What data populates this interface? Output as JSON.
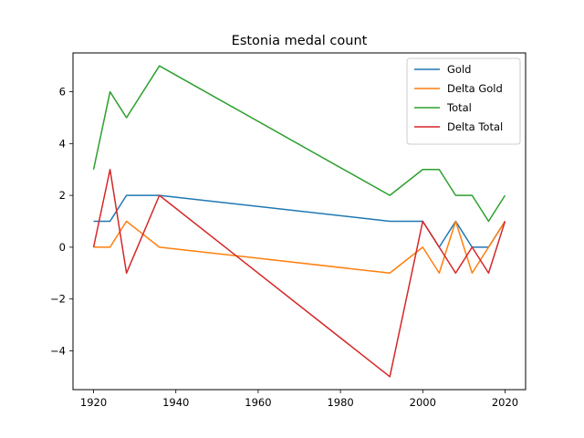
{
  "chart_data": {
    "type": "line",
    "title": "Estonia medal count",
    "xlabel": "",
    "ylabel": "",
    "xlim": [
      1915,
      2025
    ],
    "ylim": [
      -5.5,
      7.5
    ],
    "x": [
      1920,
      1924,
      1928,
      1936,
      1992,
      2000,
      2004,
      2008,
      2012,
      2016,
      2020
    ],
    "xticks": [
      1920,
      1940,
      1960,
      1980,
      2000,
      2020
    ],
    "yticks": [
      -4,
      -2,
      0,
      2,
      4,
      6
    ],
    "grid": false,
    "legend_position": "top-right",
    "series": [
      {
        "name": "Gold",
        "color": "#1f77b4",
        "values": [
          1,
          1,
          2,
          2,
          1,
          1,
          0,
          1,
          0,
          0,
          1
        ]
      },
      {
        "name": "Delta Gold",
        "color": "#ff7f0e",
        "values": [
          0,
          0,
          1,
          0,
          -1,
          0,
          -1,
          1,
          -1,
          0,
          1
        ]
      },
      {
        "name": "Total",
        "color": "#2ca02c",
        "values": [
          3,
          6,
          5,
          7,
          2,
          3,
          3,
          2,
          2,
          1,
          2
        ]
      },
      {
        "name": "Delta Total",
        "color": "#d62728",
        "values": [
          0,
          3,
          -1,
          2,
          -5,
          1,
          0,
          -1,
          0,
          -1,
          1
        ]
      }
    ]
  }
}
